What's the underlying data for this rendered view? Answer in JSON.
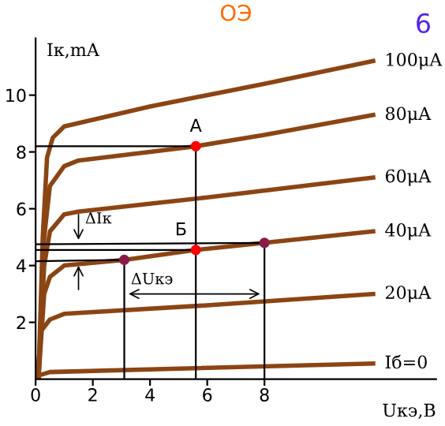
{
  "chart_data": {
    "type": "line",
    "title": "ОЭ",
    "xlabel": "Uкэ,В",
    "ylabel": "Iк,mA",
    "xlim": [
      0,
      14
    ],
    "ylim": [
      0,
      12
    ],
    "xticks": [
      0,
      2,
      4,
      6,
      8
    ],
    "yticks": [
      2,
      4,
      6,
      8,
      10
    ],
    "grid": false,
    "legend": false,
    "marker": "none",
    "line_style": "solid",
    "series": [
      {
        "name": "100μA",
        "color": "#8b4513",
        "x": [
          0.1,
          0.25,
          0.4,
          0.6,
          1.0,
          4,
          8,
          11.8
        ],
        "values": [
          0,
          5.0,
          7.8,
          8.5,
          8.9,
          9.6,
          10.4,
          11.2
        ]
      },
      {
        "name": "80μA",
        "color": "#8b4513",
        "x": [
          0.1,
          0.3,
          0.5,
          1.0,
          1.5,
          5.6,
          8,
          11.8
        ],
        "values": [
          0,
          5.0,
          6.8,
          7.5,
          7.7,
          8.2,
          8.6,
          9.3
        ]
      },
      {
        "name": "60μA",
        "color": "#8b4513",
        "x": [
          0.1,
          0.3,
          0.5,
          1.0,
          1.5,
          6,
          11.8
        ],
        "values": [
          0,
          4.0,
          5.2,
          5.8,
          5.9,
          6.4,
          7.1
        ]
      },
      {
        "name": "40μA",
        "color": "#8b4513",
        "x": [
          0.1,
          0.3,
          0.5,
          1.0,
          3.1,
          5.6,
          8,
          11.8
        ],
        "values": [
          0,
          3.0,
          3.6,
          4.0,
          4.2,
          4.55,
          4.8,
          5.2
        ]
      },
      {
        "name": "20μA",
        "color": "#8b4513",
        "x": [
          0.05,
          0.2,
          0.5,
          1.0,
          6,
          11.8
        ],
        "values": [
          0,
          1.7,
          2.1,
          2.3,
          2.6,
          3.0
        ]
      },
      {
        "name": "Iб=0",
        "color": "#8b4513",
        "x": [
          0,
          0.5,
          11.8
        ],
        "values": [
          0.1,
          0.25,
          0.55
        ]
      },
      {
        "color": "#000000",
        "x": [
          0,
          5.6,
          5.6
        ],
        "values": [
          8.2,
          8.2,
          0
        ]
      },
      {
        "color": "#000000",
        "x": [
          0,
          5.6
        ],
        "values": [
          4.55,
          4.55
        ]
      },
      {
        "color": "#000000",
        "x": [
          0,
          3.1,
          3.1
        ],
        "values": [
          4.15,
          4.2,
          0
        ]
      },
      {
        "color": "#000000",
        "x": [
          0,
          8,
          8
        ],
        "values": [
          4.75,
          4.8,
          0
        ]
      },
      {
        "type": "scatter",
        "marker": "circle",
        "color": "#ff0000",
        "x": [
          5.6,
          5.6
        ],
        "values": [
          8.2,
          4.55
        ]
      },
      {
        "type": "scatter",
        "marker": "circle",
        "color": "#8b1a4a",
        "x": [
          3.1,
          8
        ],
        "values": [
          4.2,
          4.8
        ]
      }
    ],
    "annotations": [
      {
        "text": "A",
        "x": 5.6,
        "y": 8.2
      },
      {
        "text": "Б",
        "x": 5.6,
        "y": 4.55
      },
      {
        "text": "ΔIк",
        "x": 1.5,
        "y": 4.75
      },
      {
        "text": "ΔUкэ",
        "x": 3.1,
        "y": 3.0
      },
      "6"
    ]
  }
}
